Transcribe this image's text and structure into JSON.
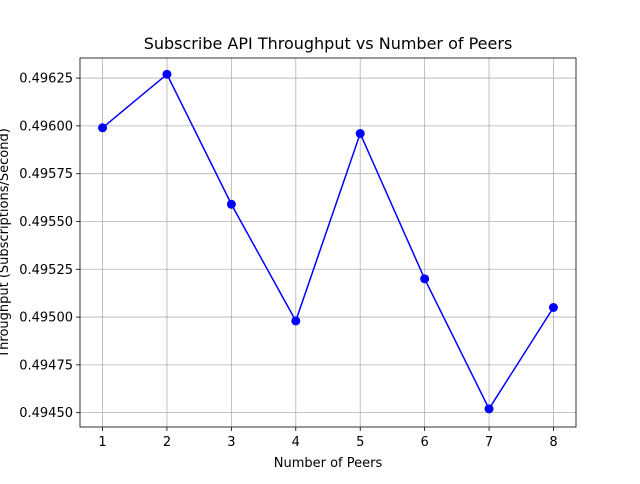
{
  "chart_data": {
    "type": "line",
    "title": "Subscribe API Throughput vs Number of Peers",
    "xlabel": "Number of Peers",
    "ylabel": "Throughput (Subscriptions/Second)",
    "x": [
      1,
      2,
      3,
      4,
      5,
      6,
      7,
      8
    ],
    "xticks": [
      "1",
      "2",
      "3",
      "4",
      "5",
      "6",
      "7",
      "8"
    ],
    "yticks": [
      "0.49450",
      "0.49475",
      "0.49500",
      "0.49525",
      "0.49550",
      "0.49575",
      "0.49600",
      "0.49625"
    ],
    "xlim": [
      0.65,
      8.35
    ],
    "ylim": [
      0.494425,
      0.496355
    ],
    "grid": true,
    "series": [
      {
        "values": [
          0.49599,
          0.49627,
          0.49559,
          0.49498,
          0.49596,
          0.4952,
          0.49452,
          0.49505
        ],
        "color": "#0000ff",
        "marker": "circle"
      }
    ]
  }
}
